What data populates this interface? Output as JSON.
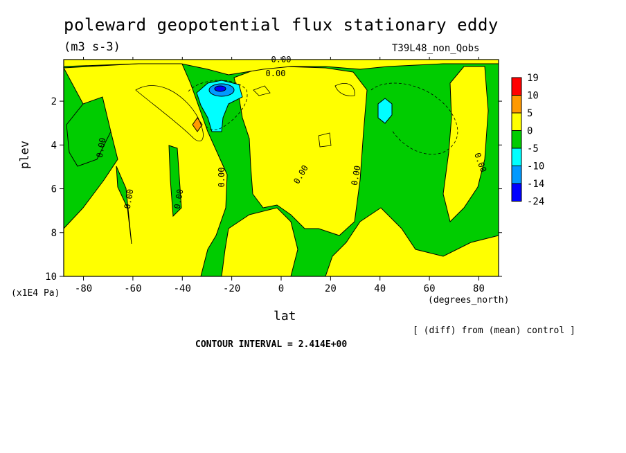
{
  "chart_data": {
    "type": "contour",
    "title": "poleward geopotential flux stationary eddy",
    "units": "(m3 s-3)",
    "run_id": "T39L48_non_Qobs",
    "xlabel": "lat",
    "x_units": "(degrees_north)",
    "ylabel": "plev",
    "y_units": "(x1E4 Pa)",
    "xlim": [
      -88,
      88
    ],
    "ylim": [
      10,
      0.1
    ],
    "x_ticks": [
      "-80",
      "-60",
      "-40",
      "-20",
      "0",
      "20",
      "40",
      "60",
      "80"
    ],
    "x_tick_values": [
      -80,
      -60,
      -40,
      -20,
      0,
      20,
      40,
      60,
      80
    ],
    "y_ticks": [
      "2",
      "4",
      "6",
      "8",
      "10"
    ],
    "y_tick_values": [
      2,
      4,
      6,
      8,
      10
    ],
    "contour_labels": [
      "0.00",
      "0.00",
      "0.00",
      "0.00",
      "0.00",
      "0.00",
      "0.00",
      "0.00",
      "0.00",
      "0.00"
    ],
    "colorbar": {
      "levels": [
        "19",
        "10",
        "5",
        "0",
        "-5",
        "-10",
        "-14",
        "-24"
      ],
      "colors": [
        "#ff0000",
        "#ff9900",
        "#ffff00",
        "#00cc00",
        "#00ffff",
        "#0099ff",
        "#0000ff"
      ]
    },
    "note": "[ (diff) from (mean) control ]",
    "contour_interval": "CONTOUR INTERVAL = 2.414E+00"
  }
}
